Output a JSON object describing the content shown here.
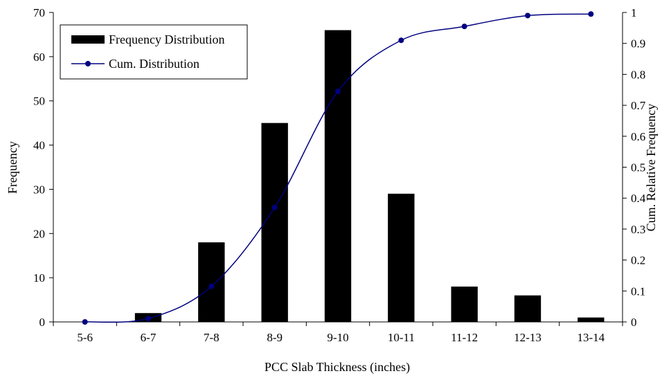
{
  "chart_data": {
    "type": "bar",
    "categories": [
      "5-6",
      "6-7",
      "7-8",
      "8-9",
      "9-10",
      "10-11",
      "11-12",
      "12-13",
      "13-14"
    ],
    "series": [
      {
        "name": "Frequency Distribution",
        "type": "bar",
        "axis": "left",
        "color": "#000000",
        "values": [
          0,
          2,
          18,
          45,
          66,
          29,
          8,
          6,
          1
        ]
      },
      {
        "name": "Cum. Distribution",
        "type": "line",
        "axis": "right",
        "color": "#000080",
        "marker": "circle",
        "values": [
          0.0,
          0.011,
          0.115,
          0.37,
          0.745,
          0.91,
          0.955,
          0.99,
          0.995
        ]
      }
    ],
    "xlabel": "PCC Slab Thickness (inches)",
    "ylabel": "Frequency",
    "y2label": "Cum. Relative Frequency",
    "ylim": [
      0,
      70
    ],
    "y2lim": [
      0,
      1
    ],
    "yticks": [
      "0",
      "10",
      "20",
      "30",
      "40",
      "50",
      "60",
      "70"
    ],
    "y2ticks": [
      "0",
      "0.1",
      "0.2",
      "0.3",
      "0.4",
      "0.5",
      "0.6",
      "0.7",
      "0.8",
      "0.9",
      "1"
    ],
    "grid": false,
    "legend": "top-left"
  }
}
